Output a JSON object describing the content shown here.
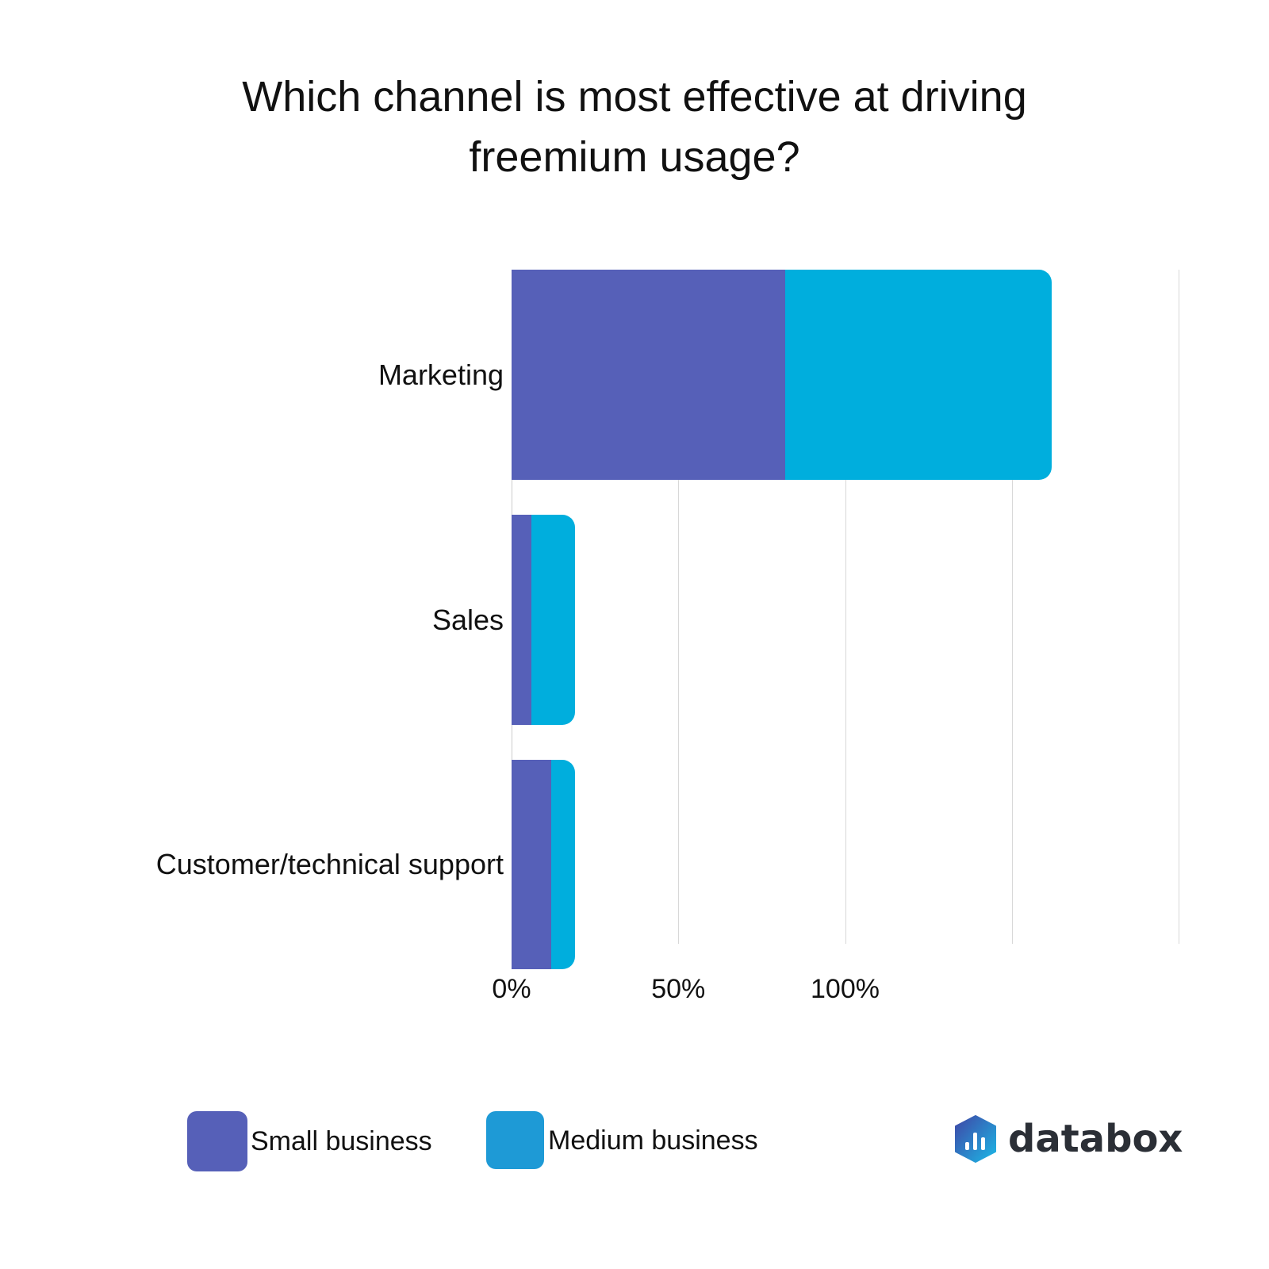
{
  "chart_data": {
    "type": "bar",
    "orientation": "horizontal",
    "stacked": true,
    "title": "Which channel is most effective at driving freemium usage?",
    "title_lines": [
      "Which channel is most effective at driving",
      "freemium usage?"
    ],
    "categories": [
      "Marketing",
      "Sales",
      "Customer/technical support"
    ],
    "series": [
      {
        "name": "Small business",
        "color": "#5660B8",
        "values": [
          82,
          6,
          12
        ]
      },
      {
        "name": "Medium business",
        "color": "#00AEDD",
        "legend_color": "#1E9AD6",
        "values": [
          80,
          13,
          7
        ]
      }
    ],
    "xlim": [
      0,
      200
    ],
    "xticks": [
      0,
      50,
      100
    ],
    "xtick_labels": [
      "0%",
      "50%",
      "100%"
    ],
    "gridlines": [
      50,
      100,
      150,
      200
    ],
    "legend_placement": "bottom-left"
  },
  "brand": {
    "name": "databox"
  }
}
